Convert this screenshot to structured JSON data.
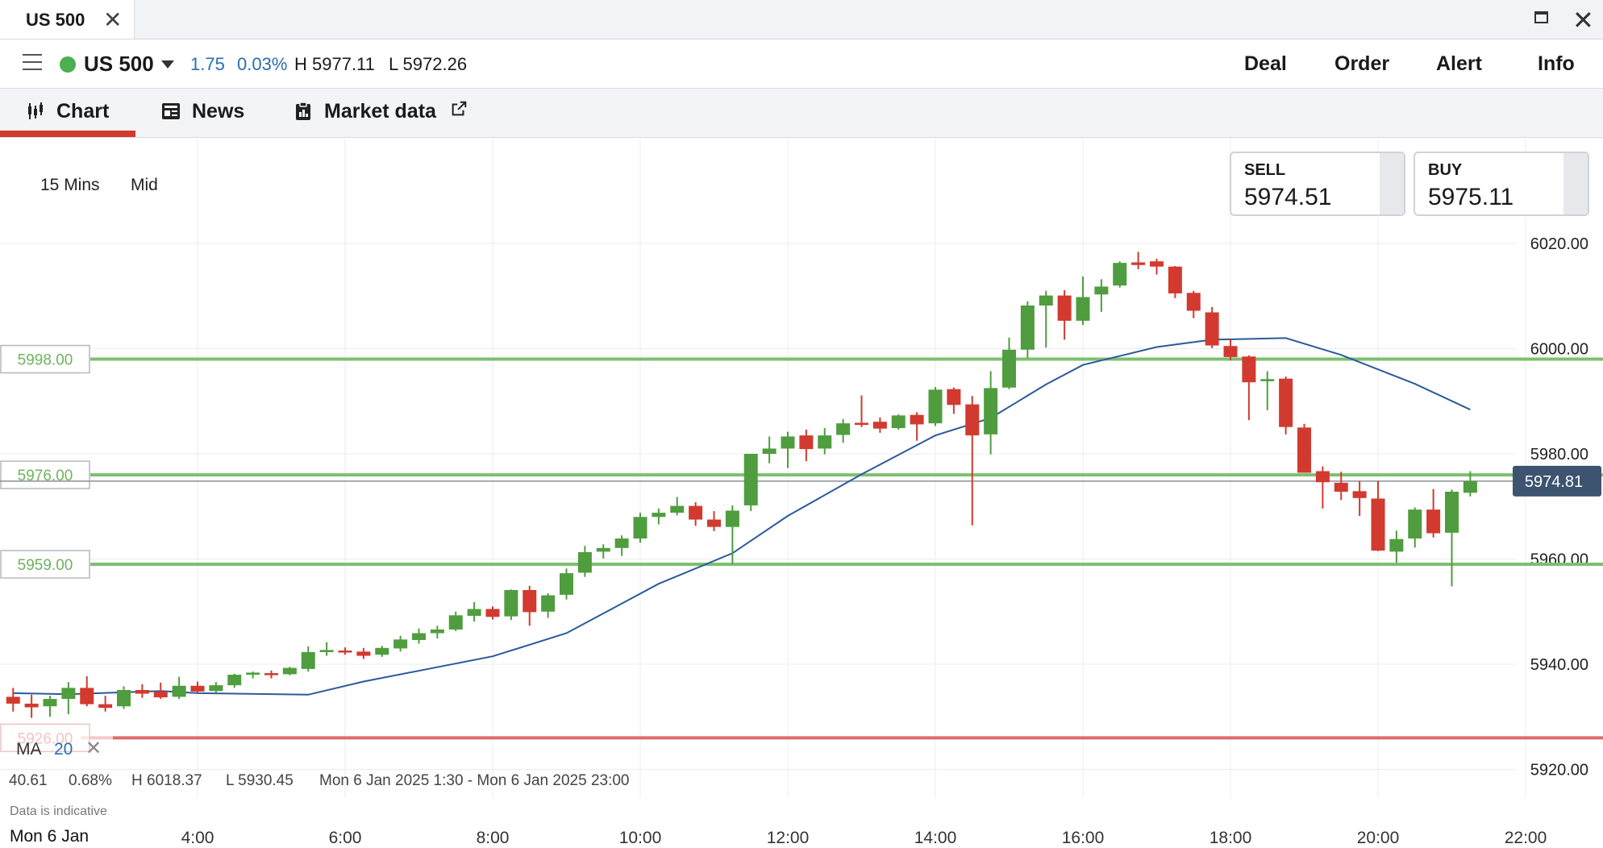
{
  "window": {
    "tab_title": "US 500",
    "close_glyph": "✕",
    "maximize_icon": "maximize-icon",
    "window_close_glyph": "✕"
  },
  "header": {
    "instrument": "US 500",
    "status_color": "#4caf50",
    "change": "1.75",
    "change_pct": "0.03%",
    "high": "H 5977.11",
    "low": "L 5972.26",
    "actions": [
      "Deal",
      "Order",
      "Alert",
      "Info"
    ]
  },
  "tabs": [
    {
      "label": "Chart",
      "icon": "candlestick-icon",
      "active": true
    },
    {
      "label": "News",
      "icon": "newspaper-icon",
      "active": false
    },
    {
      "label": "Market data",
      "icon": "clipboard-icon",
      "active": false,
      "external_icon": "external-link-icon"
    }
  ],
  "quotes": {
    "sell": {
      "label": "SELL",
      "value": "5974.51"
    },
    "buy": {
      "label": "BUY",
      "value": "5975.11"
    }
  },
  "toolbar": {
    "timeframe": "15 Mins",
    "price_type": "Mid"
  },
  "chart_data": {
    "type": "candlestick",
    "y_ticks": [
      "6020.00",
      "6000.00",
      "5980.00",
      "5960.00",
      "5940.00",
      "5920.00"
    ],
    "ylim": [
      5913,
      6037
    ],
    "x_ticks": [
      "4:00",
      "6:00",
      "8:00",
      "10:00",
      "12:00",
      "14:00",
      "16:00",
      "18:00",
      "20:00",
      "22:00"
    ],
    "x_start_label": "Mon 6 Jan",
    "current_price": "5974.81",
    "current_price_value": 5974.81,
    "levels": [
      {
        "label": "5998.00",
        "value": 5998.0,
        "color": "#7cc16e"
      },
      {
        "label": "5976.00",
        "value": 5976.0,
        "color": "#7cc16e"
      },
      {
        "label": "5959.00",
        "value": 5959.0,
        "color": "#7cc16e"
      },
      {
        "label": "5926.00",
        "value": 5926.0,
        "color": "#e06a6a"
      }
    ],
    "up_color": "#4f9d3f",
    "down_color": "#d23a2f",
    "ma_color": "#2a5a9a",
    "candles": [
      {
        "time": "1:30",
        "o": 5933.8,
        "h": 5935.5,
        "l": 5931.0,
        "c": 5932.5
      },
      {
        "time": "1:45",
        "o": 5932.5,
        "h": 5934.2,
        "l": 5929.8,
        "c": 5931.8
      },
      {
        "time": "2:00",
        "o": 5932.0,
        "h": 5934.0,
        "l": 5930.0,
        "c": 5933.4
      },
      {
        "time": "2:15",
        "o": 5933.4,
        "h": 5936.6,
        "l": 5930.5,
        "c": 5935.5
      },
      {
        "time": "2:30",
        "o": 5935.5,
        "h": 5937.7,
        "l": 5932.0,
        "c": 5932.4
      },
      {
        "time": "2:45",
        "o": 5932.4,
        "h": 5934.0,
        "l": 5931.0,
        "c": 5931.7
      },
      {
        "time": "3:00",
        "o": 5932.0,
        "h": 5935.8,
        "l": 5931.5,
        "c": 5935.1
      },
      {
        "time": "3:15",
        "o": 5935.1,
        "h": 5936.2,
        "l": 5933.6,
        "c": 5934.4
      },
      {
        "time": "3:30",
        "o": 5934.8,
        "h": 5936.5,
        "l": 5933.4,
        "c": 5933.7
      },
      {
        "time": "3:45",
        "o": 5933.8,
        "h": 5937.6,
        "l": 5933.4,
        "c": 5935.9
      },
      {
        "time": "4:00",
        "o": 5935.9,
        "h": 5936.7,
        "l": 5934.5,
        "c": 5934.8
      },
      {
        "time": "4:15",
        "o": 5934.9,
        "h": 5936.6,
        "l": 5934.6,
        "c": 5936.0
      },
      {
        "time": "4:30",
        "o": 5936.0,
        "h": 5938.2,
        "l": 5935.5,
        "c": 5938.0
      },
      {
        "time": "4:45",
        "o": 5938.0,
        "h": 5938.6,
        "l": 5937.3,
        "c": 5938.4
      },
      {
        "time": "5:00",
        "o": 5938.3,
        "h": 5938.8,
        "l": 5937.3,
        "c": 5938.1
      },
      {
        "time": "5:15",
        "o": 5938.1,
        "h": 5939.5,
        "l": 5937.9,
        "c": 5939.3
      },
      {
        "time": "5:30",
        "o": 5939.1,
        "h": 5943.4,
        "l": 5938.6,
        "c": 5942.3
      },
      {
        "time": "5:45",
        "o": 5942.3,
        "h": 5944.2,
        "l": 5941.6,
        "c": 5942.7
      },
      {
        "time": "6:00",
        "o": 5942.6,
        "h": 5943.2,
        "l": 5941.8,
        "c": 5942.4
      },
      {
        "time": "6:15",
        "o": 5942.4,
        "h": 5943.1,
        "l": 5941.0,
        "c": 5941.6
      },
      {
        "time": "6:30",
        "o": 5941.8,
        "h": 5943.5,
        "l": 5941.4,
        "c": 5943.1
      },
      {
        "time": "6:45",
        "o": 5943.0,
        "h": 5945.4,
        "l": 5942.4,
        "c": 5944.7
      },
      {
        "time": "7:00",
        "o": 5944.6,
        "h": 5946.8,
        "l": 5943.9,
        "c": 5945.9
      },
      {
        "time": "7:15",
        "o": 5945.9,
        "h": 5947.3,
        "l": 5944.9,
        "c": 5946.6
      },
      {
        "time": "7:30",
        "o": 5946.6,
        "h": 5950.0,
        "l": 5946.3,
        "c": 5949.3
      },
      {
        "time": "7:45",
        "o": 5949.2,
        "h": 5951.8,
        "l": 5948.1,
        "c": 5950.5
      },
      {
        "time": "8:00",
        "o": 5950.5,
        "h": 5951.0,
        "l": 5948.5,
        "c": 5949.0
      },
      {
        "time": "8:15",
        "o": 5949.1,
        "h": 5954.2,
        "l": 5948.4,
        "c": 5954.1
      },
      {
        "time": "8:30",
        "o": 5954.1,
        "h": 5954.9,
        "l": 5947.3,
        "c": 5949.9
      },
      {
        "time": "8:45",
        "o": 5950.0,
        "h": 5953.5,
        "l": 5948.8,
        "c": 5953.1
      },
      {
        "time": "9:00",
        "o": 5953.2,
        "h": 5958.2,
        "l": 5952.3,
        "c": 5957.3
      },
      {
        "time": "9:15",
        "o": 5957.4,
        "h": 5962.5,
        "l": 5956.6,
        "c": 5961.3
      },
      {
        "time": "9:30",
        "o": 5961.4,
        "h": 5962.8,
        "l": 5960.1,
        "c": 5962.1
      },
      {
        "time": "9:45",
        "o": 5962.1,
        "h": 5964.5,
        "l": 5960.6,
        "c": 5963.9
      },
      {
        "time": "10:00",
        "o": 5963.9,
        "h": 5968.8,
        "l": 5963.1,
        "c": 5968.0
      },
      {
        "time": "10:15",
        "o": 5968.0,
        "h": 5969.6,
        "l": 5966.6,
        "c": 5968.8
      },
      {
        "time": "10:30",
        "o": 5968.8,
        "h": 5971.8,
        "l": 5968.3,
        "c": 5970.1
      },
      {
        "time": "10:45",
        "o": 5970.1,
        "h": 5970.8,
        "l": 5966.3,
        "c": 5967.5
      },
      {
        "time": "11:00",
        "o": 5967.5,
        "h": 5969.1,
        "l": 5965.3,
        "c": 5966.1
      },
      {
        "time": "11:15",
        "o": 5966.1,
        "h": 5970.2,
        "l": 5959.0,
        "c": 5969.2
      },
      {
        "time": "11:30",
        "o": 5970.2,
        "h": 5980.0,
        "l": 5969.1,
        "c": 5980.0
      },
      {
        "time": "11:45",
        "o": 5980.0,
        "h": 5983.3,
        "l": 5978.2,
        "c": 5981.0
      },
      {
        "time": "12:00",
        "o": 5981.0,
        "h": 5984.2,
        "l": 5977.3,
        "c": 5983.3
      },
      {
        "time": "12:15",
        "o": 5983.5,
        "h": 5984.6,
        "l": 5978.6,
        "c": 5980.9
      },
      {
        "time": "12:30",
        "o": 5981.0,
        "h": 5984.9,
        "l": 5979.9,
        "c": 5983.5
      },
      {
        "time": "12:45",
        "o": 5983.6,
        "h": 5986.6,
        "l": 5982.1,
        "c": 5985.8
      },
      {
        "time": "13:00",
        "o": 5985.9,
        "h": 5991.1,
        "l": 5985.1,
        "c": 5985.5
      },
      {
        "time": "13:15",
        "o": 5986.1,
        "h": 5986.9,
        "l": 5984.0,
        "c": 5984.8
      },
      {
        "time": "13:30",
        "o": 5984.9,
        "h": 5987.5,
        "l": 5984.6,
        "c": 5987.3
      },
      {
        "time": "13:45",
        "o": 5987.4,
        "h": 5987.9,
        "l": 5982.5,
        "c": 5985.6
      },
      {
        "time": "14:00",
        "o": 5985.8,
        "h": 5992.7,
        "l": 5985.3,
        "c": 5992.2
      },
      {
        "time": "14:15",
        "o": 5992.3,
        "h": 5992.6,
        "l": 5987.6,
        "c": 5989.3
      },
      {
        "time": "14:30",
        "o": 5989.4,
        "h": 5991.0,
        "l": 5966.4,
        "c": 5983.5
      },
      {
        "time": "14:45",
        "o": 5983.7,
        "h": 5995.7,
        "l": 5979.9,
        "c": 5992.5
      },
      {
        "time": "15:00",
        "o": 5992.6,
        "h": 6002.1,
        "l": 5992.3,
        "c": 5999.8
      },
      {
        "time": "15:15",
        "o": 5999.8,
        "h": 6009.0,
        "l": 5998.2,
        "c": 6008.2
      },
      {
        "time": "15:30",
        "o": 6008.2,
        "h": 6011.0,
        "l": 6000.2,
        "c": 6010.1
      },
      {
        "time": "15:45",
        "o": 6010.1,
        "h": 6011.1,
        "l": 6001.7,
        "c": 6005.3
      },
      {
        "time": "16:00",
        "o": 6005.3,
        "h": 6013.7,
        "l": 6004.5,
        "c": 6009.8
      },
      {
        "time": "16:15",
        "o": 6010.3,
        "h": 6013.2,
        "l": 6007.0,
        "c": 6011.8
      },
      {
        "time": "16:30",
        "o": 6012.0,
        "h": 6016.6,
        "l": 6011.6,
        "c": 6016.3
      },
      {
        "time": "16:45",
        "o": 6016.4,
        "h": 6018.4,
        "l": 6015.1,
        "c": 6015.9
      },
      {
        "time": "17:00",
        "o": 6016.6,
        "h": 6017.1,
        "l": 6014.1,
        "c": 6015.6
      },
      {
        "time": "17:15",
        "o": 6015.6,
        "h": 6015.7,
        "l": 6009.6,
        "c": 6010.5
      },
      {
        "time": "17:30",
        "o": 6010.6,
        "h": 6011.0,
        "l": 6005.8,
        "c": 6007.2
      },
      {
        "time": "17:45",
        "o": 6006.9,
        "h": 6007.9,
        "l": 6000.1,
        "c": 6000.6
      },
      {
        "time": "18:00",
        "o": 6000.5,
        "h": 6001.8,
        "l": 5997.8,
        "c": 5998.4
      },
      {
        "time": "18:15",
        "o": 5998.5,
        "h": 5998.7,
        "l": 5986.4,
        "c": 5993.6
      },
      {
        "time": "18:30",
        "o": 5993.8,
        "h": 5995.7,
        "l": 5988.3,
        "c": 5994.2
      },
      {
        "time": "18:45",
        "o": 5994.3,
        "h": 5994.7,
        "l": 5983.7,
        "c": 5985.1
      },
      {
        "time": "19:00",
        "o": 5985.0,
        "h": 5985.7,
        "l": 5976.4,
        "c": 5976.4
      },
      {
        "time": "19:15",
        "o": 5976.7,
        "h": 5977.6,
        "l": 5969.6,
        "c": 5974.6
      },
      {
        "time": "19:30",
        "o": 5974.5,
        "h": 5976.6,
        "l": 5971.2,
        "c": 5972.8
      },
      {
        "time": "19:45",
        "o": 5972.9,
        "h": 5974.8,
        "l": 5968.2,
        "c": 5971.6
      },
      {
        "time": "20:00",
        "o": 5971.5,
        "h": 5974.8,
        "l": 5961.5,
        "c": 5961.6
      },
      {
        "time": "20:15",
        "o": 5961.4,
        "h": 5965.4,
        "l": 5959.3,
        "c": 5963.8
      },
      {
        "time": "20:30",
        "o": 5963.9,
        "h": 5969.8,
        "l": 5962.2,
        "c": 5969.4
      },
      {
        "time": "20:45",
        "o": 5969.4,
        "h": 5973.3,
        "l": 5964.1,
        "c": 5964.9
      },
      {
        "time": "21:00",
        "o": 5965.0,
        "h": 5973.2,
        "l": 5954.8,
        "c": 5972.8
      },
      {
        "time": "21:15",
        "o": 5972.6,
        "h": 5976.7,
        "l": 5971.9,
        "c": 5974.8
      }
    ],
    "ma": [
      {
        "time": "1:30",
        "v": 5934.5
      },
      {
        "time": "2:15",
        "v": 5934.3
      },
      {
        "time": "3:30",
        "v": 5934.9
      },
      {
        "time": "4:00",
        "v": 5934.5
      },
      {
        "time": "5:30",
        "v": 5934.2
      },
      {
        "time": "6:15",
        "v": 5936.7
      },
      {
        "time": "8:00",
        "v": 5941.5
      },
      {
        "time": "9:00",
        "v": 5945.9
      },
      {
        "time": "10:15",
        "v": 5955.3
      },
      {
        "time": "11:15",
        "v": 5961.1
      },
      {
        "time": "12:00",
        "v": 5968.2
      },
      {
        "time": "13:00",
        "v": 5976.1
      },
      {
        "time": "14:00",
        "v": 5983.5
      },
      {
        "time": "14:45",
        "v": 5986.8
      },
      {
        "time": "15:30",
        "v": 5993.2
      },
      {
        "time": "16:00",
        "v": 5996.9
      },
      {
        "time": "17:00",
        "v": 6000.3
      },
      {
        "time": "17:45",
        "v": 6001.7
      },
      {
        "time": "18:45",
        "v": 6002.0
      },
      {
        "time": "19:30",
        "v": 5998.8
      },
      {
        "time": "20:30",
        "v": 5993.3
      },
      {
        "time": "21:15",
        "v": 5988.4
      }
    ]
  },
  "indicator": {
    "label": "MA",
    "period": "20",
    "close_glyph": "✕"
  },
  "summary": {
    "change": "40.61",
    "change_pct": "0.68%",
    "high": "H 6018.37",
    "low": "L 5930.45",
    "range": "Mon 6 Jan 2025 1:30 - Mon 6 Jan 2025 23:00",
    "indicative": "Data is indicative"
  }
}
